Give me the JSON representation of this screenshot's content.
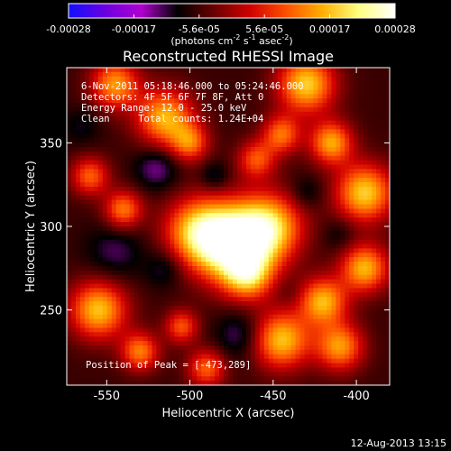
{
  "colorbar": {
    "ticks": [
      "-0.00028",
      "-0.00017",
      "-5.6e-05",
      "5.6e-05",
      "0.00017",
      "0.00028"
    ],
    "units_text": "(photons cm",
    "units_exp1": "-2",
    "units_mid": " s",
    "units_exp2": "-1",
    "units_end": " asec",
    "units_exp3": "-2",
    "units_close": ")",
    "colors": [
      "#1010ff",
      "#6a00e0",
      "#b000d0",
      "#000000",
      "#6a0000",
      "#d00000",
      "#ff5000",
      "#ffb000",
      "#ffff80",
      "#ffffff"
    ]
  },
  "header": {
    "time_range": "6-Nov-2011 05:18:46.000 to 05:24:46.000",
    "detectors": "Detectors: 4F 5F 6F 7F 8F, Att 0",
    "energy": "Energy Range: 12.0 - 25.0 keV",
    "clean": "Clean     Total counts: 1.24E+04"
  },
  "peak_text": "Position of Peak = [-473,289]",
  "footer_date": "12-Aug-2013 13:15",
  "chart_data": {
    "type": "heatmap",
    "title": "Reconstructed RHESSI Image",
    "xlabel": "Heliocentric X (arcsec)",
    "ylabel": "Heliocentric Y (arcsec)",
    "xlim": [
      -574,
      -380
    ],
    "ylim": [
      205,
      395
    ],
    "x_ticks": [
      -550,
      -500,
      -450,
      -400
    ],
    "y_ticks": [
      250,
      300,
      350
    ],
    "x_tick_labels": [
      "-550",
      "-500",
      "-450",
      "-400"
    ],
    "y_tick_labels": [
      "250",
      "300",
      "350"
    ],
    "zlim": [
      -0.00028,
      0.00028
    ],
    "peak": [
      -473,
      289
    ],
    "blobs": [
      {
        "x": -473,
        "y": 289,
        "r": 16,
        "v": 0.00028
      },
      {
        "x": -495,
        "y": 297,
        "r": 14,
        "v": 0.00016
      },
      {
        "x": -452,
        "y": 300,
        "r": 14,
        "v": 0.00016
      },
      {
        "x": -465,
        "y": 270,
        "r": 10,
        "v": 0.00011
      },
      {
        "x": -515,
        "y": 365,
        "r": 12,
        "v": 0.00016
      },
      {
        "x": -545,
        "y": 385,
        "r": 10,
        "v": 0.00014
      },
      {
        "x": -430,
        "y": 385,
        "r": 12,
        "v": 0.00018
      },
      {
        "x": -415,
        "y": 350,
        "r": 9,
        "v": 0.00015
      },
      {
        "x": -395,
        "y": 320,
        "r": 12,
        "v": 0.00018
      },
      {
        "x": -395,
        "y": 275,
        "r": 10,
        "v": 0.00016
      },
      {
        "x": -420,
        "y": 255,
        "r": 10,
        "v": 0.00016
      },
      {
        "x": -445,
        "y": 232,
        "r": 12,
        "v": 0.00017
      },
      {
        "x": -410,
        "y": 228,
        "r": 10,
        "v": 0.00014
      },
      {
        "x": -555,
        "y": 250,
        "r": 12,
        "v": 0.00017
      },
      {
        "x": -540,
        "y": 310,
        "r": 8,
        "v": 0.00012
      },
      {
        "x": -560,
        "y": 330,
        "r": 8,
        "v": 0.0001
      },
      {
        "x": -530,
        "y": 225,
        "r": 8,
        "v": 0.00012
      },
      {
        "x": -500,
        "y": 350,
        "r": 8,
        "v": 0.0001
      },
      {
        "x": -460,
        "y": 340,
        "r": 8,
        "v": 9e-05
      },
      {
        "x": -445,
        "y": 355,
        "r": 8,
        "v": 0.00011
      },
      {
        "x": -505,
        "y": 240,
        "r": 7,
        "v": 9e-05
      },
      {
        "x": -490,
        "y": 215,
        "r": 8,
        "v": 0.0001
      },
      {
        "x": -485,
        "y": 330,
        "r": 6,
        "v": -0.00012
      },
      {
        "x": -520,
        "y": 335,
        "r": 9,
        "v": -0.00014
      },
      {
        "x": -515,
        "y": 275,
        "r": 8,
        "v": -0.00012
      },
      {
        "x": -470,
        "y": 235,
        "r": 10,
        "v": -0.00013
      },
      {
        "x": -545,
        "y": 285,
        "r": 12,
        "v": -0.00012
      },
      {
        "x": -430,
        "y": 320,
        "r": 7,
        "v": -0.00011
      },
      {
        "x": -410,
        "y": 295,
        "r": 7,
        "v": -0.0001
      },
      {
        "x": -565,
        "y": 360,
        "r": 8,
        "v": -0.0001
      },
      {
        "x": -440,
        "y": 260,
        "r": 6,
        "v": -8e-05
      }
    ]
  }
}
